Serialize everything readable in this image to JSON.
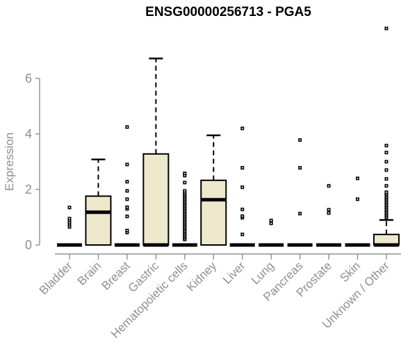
{
  "chart_data": {
    "type": "boxplot",
    "title": "ENSG00000256713 - PGA5",
    "ylabel": "Expression",
    "xlabel": "",
    "ylim": [
      0,
      6
    ],
    "yticks": [
      0,
      2,
      4,
      6
    ],
    "grid": "off",
    "legend": null,
    "categories": [
      "Bladder",
      "Brain",
      "Breast",
      "Gastric",
      "Hematopoietic cells",
      "Kidney",
      "Liver",
      "Lung",
      "Pancreas",
      "Prostate",
      "Skin",
      "Unknown / Other"
    ],
    "series": [
      {
        "category": "Bladder",
        "q1": 0,
        "median": 0,
        "q3": 0,
        "whisker_high": null,
        "outliers": [
          0.65,
          0.73,
          0.8,
          0.88,
          0.95,
          1.35
        ]
      },
      {
        "category": "Brain",
        "q1": 0,
        "median": 1.18,
        "q3": 1.76,
        "whisker_high": 3.08,
        "outliers": []
      },
      {
        "category": "Breast",
        "q1": 0,
        "median": 0,
        "q3": 0,
        "whisker_high": null,
        "outliers": [
          0.45,
          0.52,
          1.03,
          1.3,
          1.36,
          1.65,
          1.95,
          2.28,
          2.9,
          4.25
        ]
      },
      {
        "category": "Gastric",
        "q1": 0,
        "median": 0,
        "q3": 3.28,
        "whisker_high": 6.72,
        "outliers": []
      },
      {
        "category": "Hematopoietic cells",
        "q1": 0,
        "median": 0,
        "q3": 0,
        "whisker_high": null,
        "outliers": [
          0.2,
          0.26,
          0.32,
          0.38,
          0.44,
          0.5,
          0.56,
          0.62,
          0.68,
          0.74,
          0.8,
          0.86,
          0.92,
          0.98,
          1.04,
          1.1,
          1.16,
          1.22,
          1.28,
          1.34,
          1.4,
          1.46,
          1.52,
          1.58,
          1.64,
          1.7,
          1.76,
          1.82,
          1.88,
          1.95,
          2.25,
          2.5,
          2.58
        ]
      },
      {
        "category": "Kidney",
        "q1": 0,
        "median": 1.63,
        "q3": 2.33,
        "whisker_high": 3.95,
        "outliers": []
      },
      {
        "category": "Liver",
        "q1": 0,
        "median": 0,
        "q3": 0,
        "whisker_high": null,
        "outliers": [
          0.38,
          0.98,
          1.04,
          1.28,
          2.08,
          2.78,
          4.2
        ]
      },
      {
        "category": "Lung",
        "q1": 0,
        "median": 0,
        "q3": 0,
        "whisker_high": null,
        "outliers": [
          0.78,
          0.88
        ]
      },
      {
        "category": "Pancreas",
        "q1": 0,
        "median": 0,
        "q3": 0,
        "whisker_high": null,
        "outliers": [
          1.13,
          2.78,
          3.78
        ]
      },
      {
        "category": "Prostate",
        "q1": 0,
        "median": 0,
        "q3": 0,
        "whisker_high": null,
        "outliers": [
          1.15,
          1.27,
          2.13
        ]
      },
      {
        "category": "Skin",
        "q1": 0,
        "median": 0,
        "q3": 0,
        "whisker_high": null,
        "outliers": [
          1.65,
          2.4
        ]
      },
      {
        "category": "Unknown / Other",
        "q1": 0,
        "median": 0,
        "q3": 0.38,
        "whisker_high": 0.9,
        "outliers": [
          1.0,
          1.06,
          1.12,
          1.18,
          1.24,
          1.3,
          1.36,
          1.42,
          1.48,
          1.54,
          1.6,
          1.66,
          1.72,
          1.78,
          1.84,
          1.9,
          2.13,
          2.38,
          2.7,
          3.0,
          3.33,
          3.58,
          7.8
        ]
      }
    ],
    "colors": {
      "box_fill": "#EEE8CD",
      "box_border": "#000000",
      "median": "#000000",
      "outlier": "#000000",
      "axis": "#8F8F8F",
      "title": "#000000",
      "background": "#FFFFFF"
    }
  }
}
